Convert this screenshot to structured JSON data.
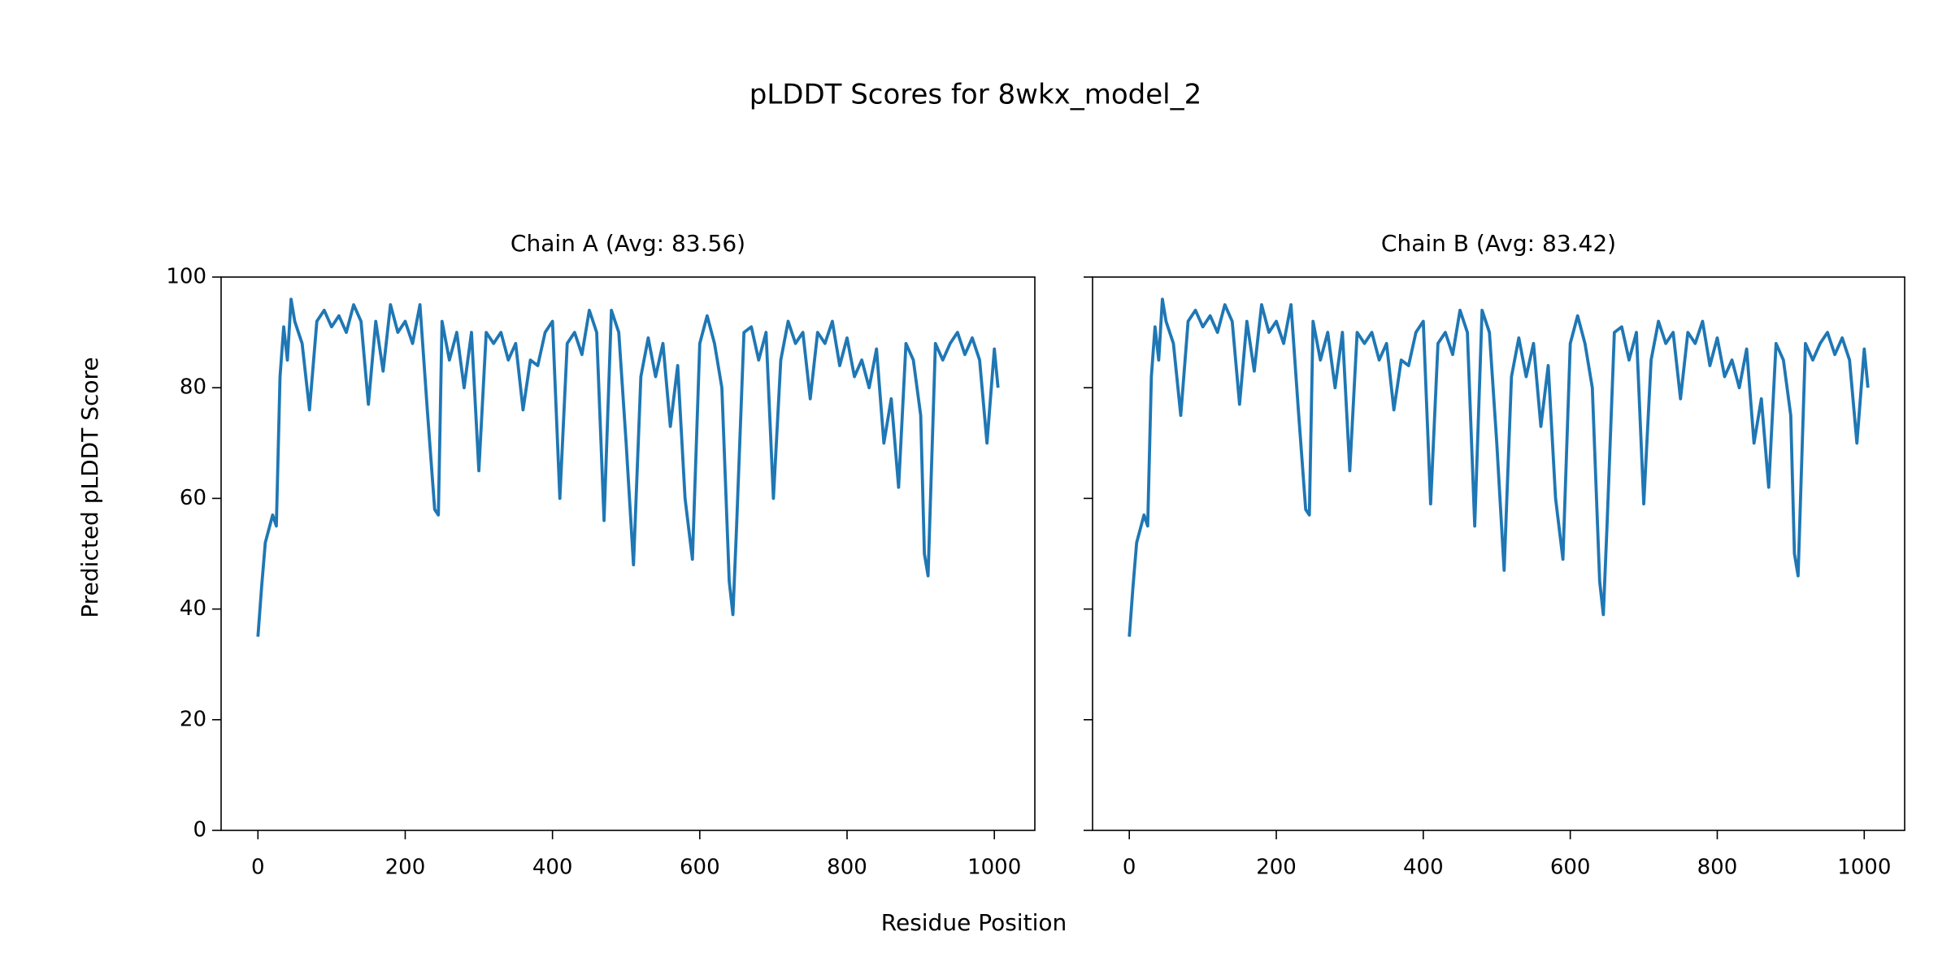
{
  "title": "pLDDT Scores for 8wkx_model_2",
  "x_label": "Residue Position",
  "y_label": "Predicted pLDDT Score",
  "chart_data": [
    {
      "type": "line",
      "title": "Chain A (Avg: 83.56)",
      "x": [
        0,
        5,
        10,
        20,
        25,
        30,
        35,
        40,
        45,
        50,
        60,
        70,
        80,
        90,
        100,
        110,
        120,
        130,
        140,
        150,
        160,
        170,
        180,
        190,
        200,
        210,
        220,
        230,
        240,
        245,
        250,
        260,
        270,
        280,
        290,
        300,
        310,
        320,
        330,
        340,
        350,
        360,
        370,
        380,
        390,
        400,
        410,
        420,
        430,
        440,
        450,
        460,
        470,
        480,
        490,
        500,
        510,
        520,
        530,
        540,
        550,
        560,
        570,
        580,
        590,
        600,
        610,
        620,
        630,
        640,
        645,
        650,
        660,
        670,
        680,
        690,
        700,
        710,
        720,
        730,
        740,
        750,
        760,
        770,
        780,
        790,
        800,
        810,
        820,
        830,
        840,
        850,
        860,
        870,
        880,
        890,
        900,
        905,
        910,
        920,
        930,
        940,
        950,
        960,
        970,
        980,
        990,
        1000,
        1005
      ],
      "series": [
        {
          "name": "Chain A",
          "color": "#1f77b4",
          "values": [
            35,
            44,
            52,
            57,
            55,
            82,
            91,
            85,
            96,
            92,
            88,
            76,
            92,
            94,
            91,
            93,
            90,
            95,
            92,
            77,
            92,
            83,
            95,
            90,
            92,
            88,
            95,
            76,
            58,
            57,
            92,
            85,
            90,
            80,
            90,
            65,
            90,
            88,
            90,
            85,
            88,
            76,
            85,
            84,
            90,
            92,
            60,
            88,
            90,
            86,
            94,
            90,
            56,
            94,
            90,
            70,
            48,
            82,
            89,
            82,
            88,
            73,
            84,
            60,
            49,
            88,
            93,
            88,
            80,
            45,
            39,
            55,
            90,
            91,
            85,
            90,
            60,
            85,
            92,
            88,
            90,
            78,
            90,
            88,
            92,
            84,
            89,
            82,
            85,
            80,
            87,
            70,
            78,
            62,
            88,
            85,
            75,
            50,
            46,
            88,
            85,
            88,
            90,
            86,
            89,
            85,
            70,
            87,
            80
          ]
        }
      ],
      "xlim": [
        -50,
        1055
      ],
      "ylim": [
        0,
        100
      ],
      "xticks": [
        0,
        200,
        400,
        600,
        800,
        1000
      ],
      "yticks": [
        0,
        20,
        40,
        60,
        80,
        100
      ],
      "show_ytick_labels": true
    },
    {
      "type": "line",
      "title": "Chain B (Avg: 83.42)",
      "x": [
        0,
        5,
        10,
        20,
        25,
        30,
        35,
        40,
        45,
        50,
        60,
        70,
        80,
        90,
        100,
        110,
        120,
        130,
        140,
        150,
        160,
        170,
        180,
        190,
        200,
        210,
        220,
        230,
        240,
        245,
        250,
        260,
        270,
        280,
        290,
        300,
        310,
        320,
        330,
        340,
        350,
        360,
        370,
        380,
        390,
        400,
        410,
        420,
        430,
        440,
        450,
        460,
        470,
        480,
        490,
        500,
        510,
        520,
        530,
        540,
        550,
        560,
        570,
        580,
        590,
        600,
        610,
        620,
        630,
        640,
        645,
        650,
        660,
        670,
        680,
        690,
        700,
        710,
        720,
        730,
        740,
        750,
        760,
        770,
        780,
        790,
        800,
        810,
        820,
        830,
        840,
        850,
        860,
        870,
        880,
        890,
        900,
        905,
        910,
        920,
        930,
        940,
        950,
        960,
        970,
        980,
        990,
        1000,
        1005
      ],
      "series": [
        {
          "name": "Chain B",
          "color": "#1f77b4",
          "values": [
            35,
            44,
            52,
            57,
            55,
            82,
            91,
            85,
            96,
            92,
            88,
            75,
            92,
            94,
            91,
            93,
            90,
            95,
            92,
            77,
            92,
            83,
            95,
            90,
            92,
            88,
            95,
            76,
            58,
            57,
            92,
            85,
            90,
            80,
            90,
            65,
            90,
            88,
            90,
            85,
            88,
            76,
            85,
            84,
            90,
            92,
            59,
            88,
            90,
            86,
            94,
            90,
            55,
            94,
            90,
            70,
            47,
            82,
            89,
            82,
            88,
            73,
            84,
            60,
            49,
            88,
            93,
            88,
            80,
            45,
            39,
            55,
            90,
            91,
            85,
            90,
            59,
            85,
            92,
            88,
            90,
            78,
            90,
            88,
            92,
            84,
            89,
            82,
            85,
            80,
            87,
            70,
            78,
            62,
            88,
            85,
            75,
            50,
            46,
            88,
            85,
            88,
            90,
            86,
            89,
            85,
            70,
            87,
            80
          ]
        }
      ],
      "xlim": [
        -50,
        1055
      ],
      "ylim": [
        0,
        100
      ],
      "xticks": [
        0,
        200,
        400,
        600,
        800,
        1000
      ],
      "yticks": [
        0,
        20,
        40,
        60,
        80,
        100
      ],
      "show_ytick_labels": false
    }
  ]
}
